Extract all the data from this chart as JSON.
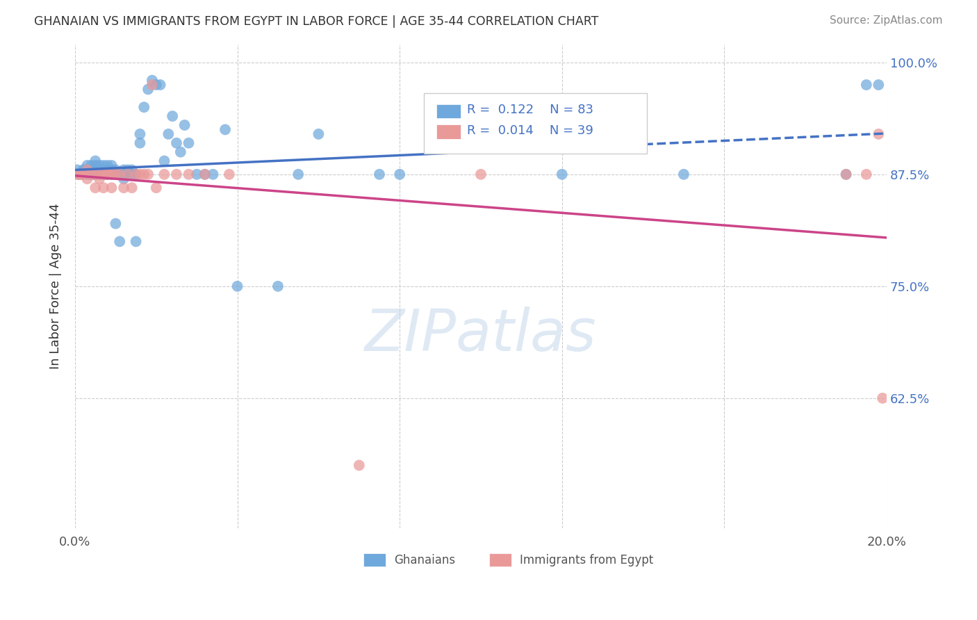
{
  "title": "GHANAIAN VS IMMIGRANTS FROM EGYPT IN LABOR FORCE | AGE 35-44 CORRELATION CHART",
  "source": "Source: ZipAtlas.com",
  "ylabel": "In Labor Force | Age 35-44",
  "xlim": [
    0.0,
    0.2
  ],
  "ylim": [
    0.48,
    1.02
  ],
  "xtick_positions": [
    0.0,
    0.04,
    0.08,
    0.12,
    0.16,
    0.2
  ],
  "xtick_labels": [
    "0.0%",
    "",
    "",
    "",
    "",
    "20.0%"
  ],
  "ytick_positions": [
    0.625,
    0.75,
    0.875,
    1.0
  ],
  "ytick_labels": [
    "62.5%",
    "75.0%",
    "87.5%",
    "100.0%"
  ],
  "background_color": "#ffffff",
  "watermark": "ZIPatlas",
  "blue_color": "#6fa8dc",
  "pink_color": "#ea9999",
  "trend_blue": "#4472c4",
  "trend_pink": "#cc4488",
  "blue_x": [
    0.0005,
    0.001,
    0.0015,
    0.002,
    0.002,
    0.0025,
    0.003,
    0.003,
    0.003,
    0.0035,
    0.004,
    0.004,
    0.004,
    0.004,
    0.0045,
    0.005,
    0.005,
    0.005,
    0.005,
    0.005,
    0.0055,
    0.006,
    0.006,
    0.006,
    0.006,
    0.006,
    0.0065,
    0.007,
    0.007,
    0.007,
    0.007,
    0.0075,
    0.008,
    0.008,
    0.008,
    0.008,
    0.009,
    0.009,
    0.009,
    0.009,
    0.01,
    0.01,
    0.01,
    0.011,
    0.011,
    0.012,
    0.012,
    0.012,
    0.013,
    0.013,
    0.014,
    0.014,
    0.015,
    0.015,
    0.016,
    0.016,
    0.017,
    0.018,
    0.019,
    0.02,
    0.021,
    0.022,
    0.023,
    0.024,
    0.025,
    0.026,
    0.027,
    0.028,
    0.03,
    0.032,
    0.034,
    0.037,
    0.04,
    0.05,
    0.055,
    0.06,
    0.075,
    0.08,
    0.12,
    0.15,
    0.19,
    0.195,
    0.198
  ],
  "blue_y": [
    0.88,
    0.875,
    0.875,
    0.875,
    0.88,
    0.88,
    0.875,
    0.88,
    0.885,
    0.875,
    0.875,
    0.88,
    0.875,
    0.885,
    0.875,
    0.875,
    0.88,
    0.885,
    0.89,
    0.875,
    0.875,
    0.88,
    0.875,
    0.885,
    0.875,
    0.875,
    0.88,
    0.875,
    0.885,
    0.875,
    0.88,
    0.875,
    0.875,
    0.88,
    0.885,
    0.875,
    0.875,
    0.88,
    0.875,
    0.885,
    0.82,
    0.875,
    0.88,
    0.8,
    0.875,
    0.87,
    0.875,
    0.88,
    0.875,
    0.88,
    0.875,
    0.88,
    0.8,
    0.875,
    0.91,
    0.92,
    0.95,
    0.97,
    0.98,
    0.975,
    0.975,
    0.89,
    0.92,
    0.94,
    0.91,
    0.9,
    0.93,
    0.91,
    0.875,
    0.875,
    0.875,
    0.925,
    0.75,
    0.75,
    0.875,
    0.92,
    0.875,
    0.875,
    0.875,
    0.875,
    0.875,
    0.975,
    0.975
  ],
  "pink_x": [
    0.0005,
    0.001,
    0.0015,
    0.002,
    0.003,
    0.003,
    0.004,
    0.005,
    0.005,
    0.006,
    0.006,
    0.007,
    0.007,
    0.008,
    0.008,
    0.009,
    0.009,
    0.01,
    0.011,
    0.012,
    0.013,
    0.014,
    0.015,
    0.016,
    0.017,
    0.018,
    0.019,
    0.02,
    0.022,
    0.025,
    0.028,
    0.032,
    0.038,
    0.07,
    0.1,
    0.19,
    0.195,
    0.198,
    0.199
  ],
  "pink_y": [
    0.875,
    0.875,
    0.875,
    0.875,
    0.88,
    0.87,
    0.875,
    0.875,
    0.86,
    0.87,
    0.875,
    0.875,
    0.86,
    0.875,
    0.875,
    0.86,
    0.875,
    0.875,
    0.875,
    0.86,
    0.875,
    0.86,
    0.875,
    0.875,
    0.875,
    0.875,
    0.975,
    0.86,
    0.875,
    0.875,
    0.875,
    0.875,
    0.875,
    0.55,
    0.875,
    0.875,
    0.875,
    0.92,
    0.625
  ]
}
